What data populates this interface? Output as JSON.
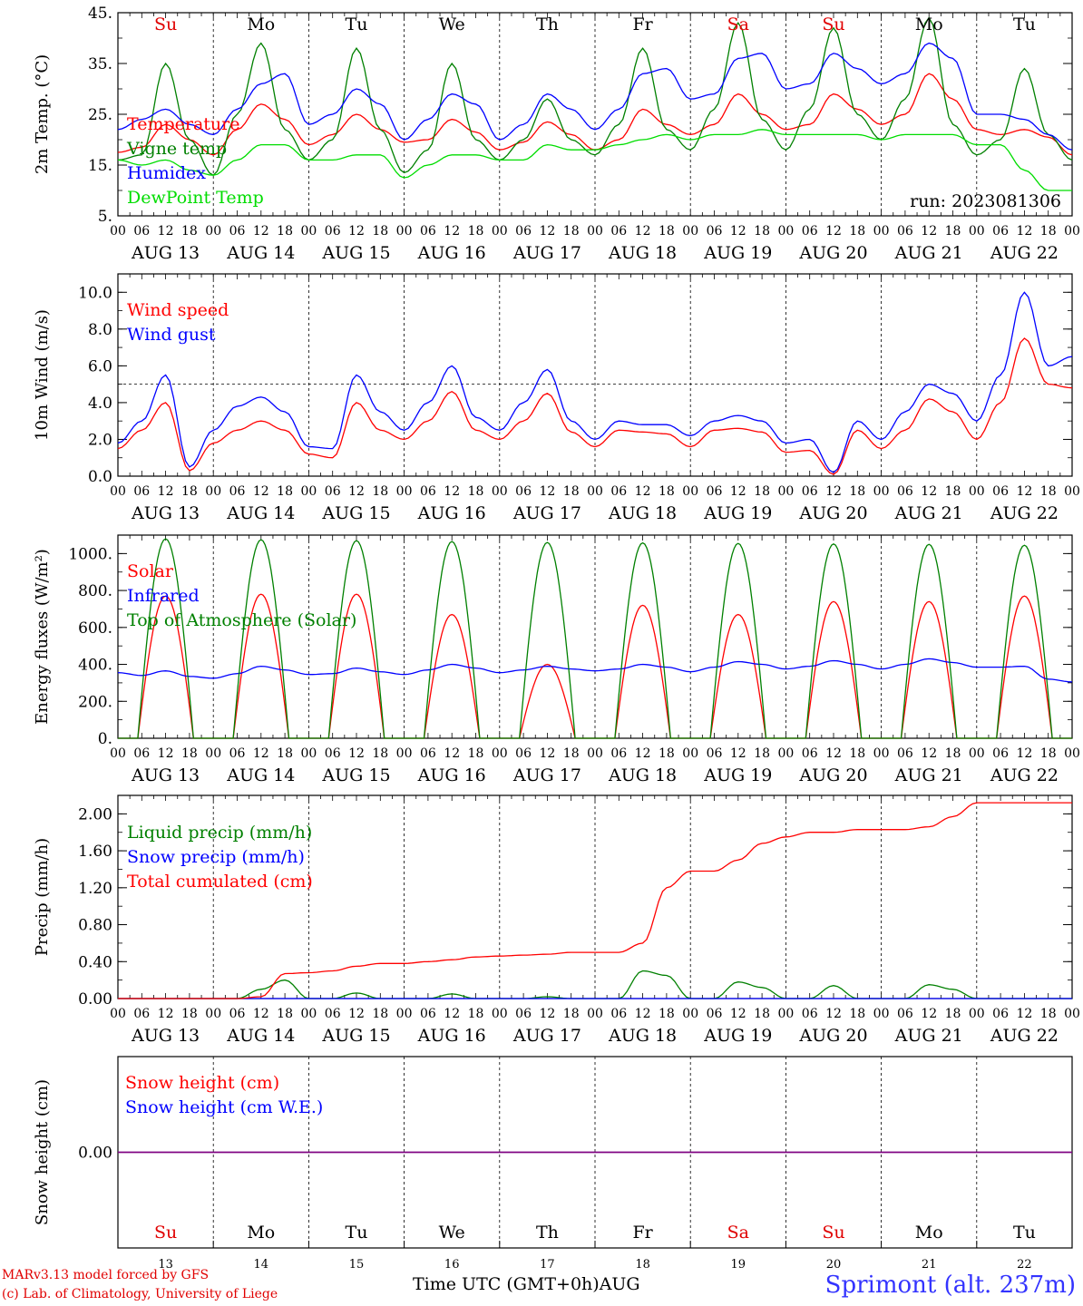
{
  "run_label": "run: 2023081306",
  "day_abbrev": [
    "Su",
    "Mo",
    "Tu",
    "We",
    "Th",
    "Fr",
    "Sa",
    "Su",
    "Mo",
    "Tu"
  ],
  "day_abbrev_colors": [
    "#e00000",
    "#000000",
    "#000000",
    "#000000",
    "#000000",
    "#000000",
    "#e00000",
    "#e00000",
    "#000000",
    "#000000"
  ],
  "date_labels": [
    "AUG 13",
    "AUG 14",
    "AUG 15",
    "AUG 16",
    "AUG 17",
    "AUG 18",
    "AUG 19",
    "AUG 20",
    "AUG 21",
    "AUG 22"
  ],
  "hour_ticks": [
    "00",
    "06",
    "12",
    "18"
  ],
  "final_hour_tick": "00",
  "bottom_day_numbers": [
    "13",
    "14",
    "15",
    "16",
    "17",
    "18",
    "19",
    "20",
    "21",
    "22"
  ],
  "x_axis_title": "Time UTC (GMT+0h)",
  "x_axis_month": "AUG",
  "credit_line1": "MARv3.13 model forced by GFS",
  "credit_line2": "(c) Lab. of Climatology, University of Liege",
  "station_label": "Sprimont (alt. 237m)",
  "colors": {
    "red": "#ff0000",
    "green": "#008000",
    "blue": "#0000ff",
    "lightgreen": "#00dd00",
    "purple": "#800080"
  },
  "chart_data": [
    {
      "type": "line",
      "ylabel": "2m Temp. (°C)",
      "ylim": [
        5,
        45
      ],
      "y_tick_labels": [
        "5.",
        "15.",
        "25.",
        "35.",
        "45."
      ],
      "y_tick_values": [
        5,
        15,
        25,
        35,
        45
      ],
      "x": [
        0,
        6,
        12,
        18,
        24,
        30,
        36,
        42,
        48,
        54,
        60,
        66,
        72,
        78,
        84,
        90,
        96,
        102,
        108,
        114,
        120,
        126,
        132,
        138,
        144,
        150,
        156,
        162,
        168,
        174,
        180,
        186,
        192,
        198,
        204,
        210,
        216,
        222,
        228,
        234,
        240
      ],
      "series": [
        {
          "name": "Temperature",
          "color": "#ff0000",
          "values": [
            17.5,
            18.5,
            23,
            20,
            17,
            22,
            27,
            24,
            19,
            21,
            25,
            22,
            19.5,
            20,
            24,
            21.5,
            18,
            19.5,
            23.5,
            21,
            18,
            20,
            26,
            23,
            21,
            23,
            29,
            25,
            22,
            23,
            29,
            26,
            23,
            25,
            33,
            28,
            22,
            21,
            22,
            20.5,
            17
          ]
        },
        {
          "name": "Vigne temp",
          "color": "#008000",
          "values": [
            16,
            17,
            35,
            20,
            13,
            25,
            39,
            22,
            16,
            20,
            38,
            22,
            13.5,
            18,
            35,
            20,
            16,
            20,
            28,
            20,
            17,
            23,
            38,
            22,
            18,
            26,
            43,
            24,
            18,
            26,
            42,
            25,
            20,
            28,
            44,
            23,
            17,
            20,
            34,
            21,
            16
          ]
        },
        {
          "name": "Humidex",
          "color": "#0000ff",
          "values": [
            22,
            24,
            26,
            23,
            21,
            26,
            31,
            33,
            23,
            25,
            30,
            27,
            20,
            24,
            29,
            27,
            20,
            23,
            29,
            26,
            22,
            26,
            33,
            34,
            28,
            29,
            36,
            37,
            30,
            31,
            37,
            34,
            31,
            33,
            39,
            36,
            25,
            25,
            24,
            21,
            18
          ]
        },
        {
          "name": "DewPoint Temp",
          "color": "#00dd00",
          "values": [
            16,
            15,
            16,
            14,
            13,
            16,
            19,
            19,
            16,
            16,
            17,
            17,
            12.5,
            15,
            17,
            17,
            16,
            16,
            19,
            18,
            18,
            19,
            20,
            21,
            20,
            21,
            21,
            22,
            21,
            21,
            21,
            21,
            20,
            21,
            21,
            21,
            19,
            19,
            14,
            10,
            10
          ]
        }
      ]
    },
    {
      "type": "line",
      "ylabel": "10m Wind (m/s)",
      "ylim": [
        0,
        11
      ],
      "y_tick_labels": [
        "0.0",
        "2.0",
        "4.0",
        "6.0",
        "8.0",
        "10.0"
      ],
      "y_tick_values": [
        0,
        2,
        4,
        6,
        8,
        10
      ],
      "reference_line": 5,
      "x": [
        0,
        6,
        12,
        18,
        24,
        30,
        36,
        42,
        48,
        54,
        60,
        66,
        72,
        78,
        84,
        90,
        96,
        102,
        108,
        114,
        120,
        126,
        132,
        138,
        144,
        150,
        156,
        162,
        168,
        174,
        180,
        186,
        192,
        198,
        204,
        210,
        216,
        222,
        228,
        234,
        240
      ],
      "series": [
        {
          "name": "Wind speed",
          "color": "#ff0000",
          "values": [
            1.5,
            2.5,
            4,
            0.3,
            1.8,
            2.5,
            3,
            2.5,
            1.2,
            1,
            4,
            2.5,
            2,
            3,
            4.6,
            2.5,
            2,
            3,
            4.5,
            2.4,
            1.6,
            2.5,
            2.4,
            2.3,
            1.6,
            2.5,
            2.6,
            2.4,
            1.3,
            1.4,
            0.1,
            2.5,
            1.5,
            2.5,
            4.2,
            3.5,
            2,
            4,
            7.5,
            5,
            4.8
          ]
        },
        {
          "name": "Wind gust",
          "color": "#0000ff",
          "values": [
            1.8,
            3,
            5.5,
            0.5,
            2.5,
            3.8,
            4.3,
            3.5,
            1.6,
            1.5,
            5.5,
            3.5,
            2.5,
            4,
            6,
            3.2,
            2.5,
            4,
            5.8,
            3,
            2,
            3,
            2.8,
            2.8,
            2.2,
            3,
            3.3,
            3,
            1.8,
            2,
            0.2,
            3,
            2,
            3.5,
            5,
            4.5,
            3,
            5.5,
            10,
            6,
            6.5
          ]
        }
      ]
    },
    {
      "type": "line",
      "ylabel": "Energy fluxes (W/m²)",
      "ylim": [
        0,
        1100
      ],
      "y_tick_labels": [
        "0.",
        "200.",
        "400.",
        "600.",
        "800.",
        "1000."
      ],
      "y_tick_values": [
        0,
        200,
        400,
        600,
        800,
        1000
      ],
      "x": [
        0,
        6,
        12,
        18,
        24,
        30,
        36,
        42,
        48,
        54,
        60,
        66,
        72,
        78,
        84,
        90,
        96,
        102,
        108,
        114,
        120,
        126,
        132,
        138,
        144,
        150,
        156,
        162,
        168,
        174,
        180,
        186,
        192,
        198,
        204,
        210,
        216,
        222,
        228,
        234,
        240
      ],
      "series": [
        {
          "name": "Solar",
          "color": "#ff0000",
          "values": [
            0,
            0,
            770,
            0,
            0,
            0,
            780,
            0,
            0,
            0,
            780,
            0,
            0,
            0,
            670,
            0,
            0,
            0,
            400,
            0,
            0,
            0,
            720,
            0,
            0,
            0,
            670,
            0,
            0,
            0,
            740,
            0,
            0,
            0,
            740,
            0,
            0,
            0,
            770,
            0,
            0
          ]
        },
        {
          "name": "Infrared",
          "color": "#0000ff",
          "values": [
            355,
            340,
            365,
            335,
            325,
            350,
            390,
            370,
            345,
            350,
            380,
            360,
            345,
            370,
            400,
            380,
            355,
            370,
            390,
            375,
            365,
            375,
            400,
            385,
            360,
            385,
            415,
            400,
            375,
            390,
            420,
            400,
            375,
            400,
            430,
            410,
            385,
            385,
            390,
            320,
            305
          ]
        },
        {
          "name": "Top of Atmosphere (Solar)",
          "color": "#008000",
          "values": [
            0,
            0,
            1080,
            0,
            0,
            0,
            1075,
            0,
            0,
            0,
            1070,
            0,
            0,
            0,
            1065,
            0,
            0,
            0,
            1060,
            0,
            0,
            0,
            1058,
            0,
            0,
            0,
            1055,
            0,
            0,
            0,
            1052,
            0,
            0,
            0,
            1050,
            0,
            0,
            0,
            1045,
            0,
            0
          ]
        }
      ]
    },
    {
      "type": "line",
      "ylabel": "Precip (mm/h)",
      "ylim": [
        0,
        2.2
      ],
      "y_tick_labels": [
        "0.00",
        "0.40",
        "0.80",
        "1.20",
        "1.60",
        "2.00"
      ],
      "y_tick_values": [
        0,
        0.4,
        0.8,
        1.2,
        1.6,
        2.0
      ],
      "x": [
        0,
        6,
        12,
        18,
        24,
        30,
        36,
        42,
        48,
        54,
        60,
        66,
        72,
        78,
        84,
        90,
        96,
        102,
        108,
        114,
        120,
        126,
        132,
        138,
        144,
        150,
        156,
        162,
        168,
        174,
        180,
        186,
        192,
        198,
        204,
        210,
        216,
        222,
        228,
        234,
        240
      ],
      "series": [
        {
          "name": "Liquid precip (mm/h)",
          "color": "#008000",
          "values": [
            0,
            0,
            0,
            0,
            0,
            0,
            0.1,
            0.2,
            0,
            0,
            0.06,
            0,
            0,
            0,
            0.05,
            0,
            0,
            0,
            0.02,
            0,
            0,
            0,
            0.3,
            0.25,
            0,
            0,
            0.18,
            0.12,
            0,
            0,
            0.14,
            0,
            0,
            0,
            0.15,
            0.1,
            0,
            0,
            0,
            0,
            0
          ]
        },
        {
          "name": "Snow precip (mm/h)",
          "color": "#0000ff",
          "values": [
            0,
            0,
            0,
            0,
            0,
            0,
            0,
            0,
            0,
            0,
            0,
            0,
            0,
            0,
            0,
            0,
            0,
            0,
            0,
            0,
            0,
            0,
            0,
            0,
            0,
            0,
            0,
            0,
            0,
            0,
            0,
            0,
            0,
            0,
            0,
            0,
            0,
            0,
            0,
            0,
            0
          ]
        },
        {
          "name": "Total cumulated (cm)",
          "color": "#ff0000",
          "values": [
            0,
            0,
            0,
            0,
            0,
            0,
            0.02,
            0.27,
            0.28,
            0.3,
            0.35,
            0.38,
            0.38,
            0.4,
            0.42,
            0.45,
            0.46,
            0.47,
            0.48,
            0.5,
            0.5,
            0.5,
            0.6,
            1.2,
            1.38,
            1.38,
            1.5,
            1.68,
            1.75,
            1.8,
            1.8,
            1.83,
            1.83,
            1.83,
            1.86,
            1.97,
            2.12,
            2.12,
            2.12,
            2.12,
            2.12
          ]
        }
      ]
    },
    {
      "type": "line",
      "ylabel": "Snow height (cm)",
      "ylim": [
        -1,
        1
      ],
      "y_tick_labels": [
        "0.00"
      ],
      "y_tick_values": [
        0
      ],
      "x": [
        0,
        240
      ],
      "series": [
        {
          "name": "Snow height (cm)",
          "color": "#ff0000",
          "values": [
            0,
            0
          ]
        },
        {
          "name": "Snow height (cm W.E.)",
          "color": "#0000ff",
          "values": [
            0,
            0
          ]
        }
      ]
    }
  ]
}
